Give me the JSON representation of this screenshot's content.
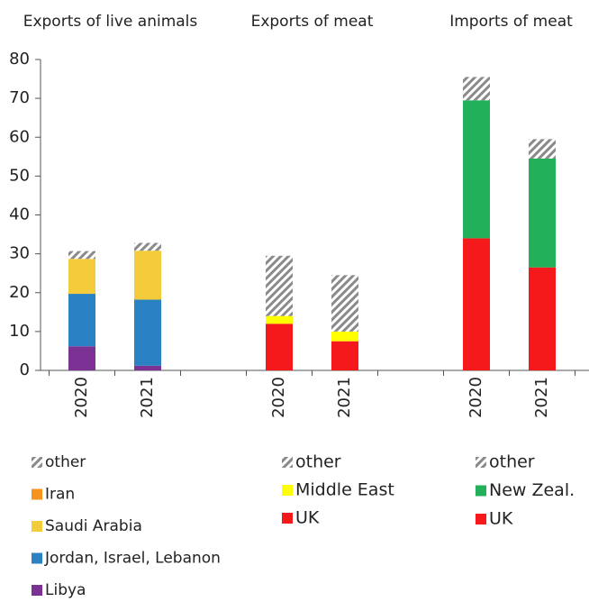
{
  "chart_data": [
    {
      "type": "bar",
      "stacked": true,
      "title": "Exports of live animals",
      "categories": [
        "2020",
        "2021"
      ],
      "ylim": [
        0,
        80
      ],
      "yticks": [
        0,
        10,
        20,
        30,
        40,
        50,
        60,
        70,
        80
      ],
      "series": [
        {
          "name": "Libya",
          "color": "#7b3294",
          "values": [
            6.2,
            1.2
          ]
        },
        {
          "name": "Jordan, Israel, Lebanon",
          "color": "#2b82c3",
          "values": [
            13.5,
            17
          ]
        },
        {
          "name": "Saudi Arabia",
          "color": "#f4cb3a",
          "values": [
            9,
            12.6
          ]
        },
        {
          "name": "Iran",
          "color": "#f7941d",
          "values": [
            0,
            0
          ]
        },
        {
          "name": "other",
          "color": "#8a8a8a",
          "pattern": "hatch",
          "values": [
            2,
            2
          ]
        }
      ]
    },
    {
      "type": "bar",
      "stacked": true,
      "title": "Exports of meat",
      "categories": [
        "2020",
        "2021"
      ],
      "series": [
        {
          "name": "UK",
          "color": "#f5191c",
          "values": [
            12,
            7.5
          ]
        },
        {
          "name": "Middle East",
          "color": "#ffff00",
          "values": [
            2,
            2.5
          ]
        },
        {
          "name": "other",
          "color": "#8a8a8a",
          "pattern": "hatch",
          "values": [
            15.5,
            14.5
          ]
        }
      ]
    },
    {
      "type": "bar",
      "stacked": true,
      "title": "Imports of meat",
      "categories": [
        "2020",
        "2021"
      ],
      "series": [
        {
          "name": "UK",
          "color": "#f5191c",
          "values": [
            34,
            26.5
          ]
        },
        {
          "name": "New Zeal.",
          "color": "#22b05a",
          "values": [
            35.5,
            28
          ]
        },
        {
          "name": "other",
          "color": "#8a8a8a",
          "pattern": "hatch",
          "values": [
            6,
            5
          ]
        }
      ]
    }
  ]
}
